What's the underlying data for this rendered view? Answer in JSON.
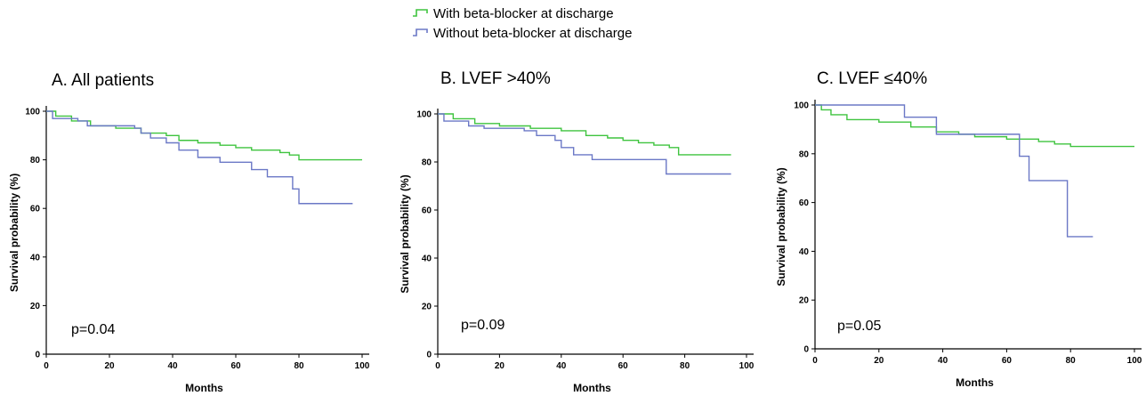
{
  "legend": {
    "items": [
      {
        "label": "With beta-blocker at discharge",
        "color": "#3fc43f"
      },
      {
        "label": "Without beta-blocker at discharge",
        "color": "#6b78c6"
      }
    ]
  },
  "chart_data": [
    {
      "type": "line",
      "title": "A. All patients",
      "xlabel": "Months",
      "ylabel": "Survival probability (%)",
      "xlim": [
        0,
        100
      ],
      "ylim": [
        0,
        100
      ],
      "xticks": [
        0,
        20,
        40,
        60,
        80,
        100
      ],
      "yticks": [
        0,
        20,
        40,
        60,
        80,
        100
      ],
      "grid": false,
      "annotation": "p=0.04",
      "series": [
        {
          "name": "With beta-blocker at discharge",
          "color": "#3fc43f",
          "x": [
            0,
            3,
            8,
            14,
            22,
            30,
            38,
            42,
            48,
            55,
            60,
            65,
            70,
            74,
            77,
            80,
            90,
            100
          ],
          "y": [
            100,
            98,
            96,
            94,
            93,
            91,
            90,
            88,
            87,
            86,
            85,
            84,
            84,
            83,
            82,
            80,
            80,
            80
          ]
        },
        {
          "name": "Without beta-blocker at discharge",
          "color": "#6b78c6",
          "x": [
            0,
            2,
            10,
            13,
            28,
            30,
            33,
            38,
            42,
            48,
            55,
            65,
            70,
            78,
            80,
            97
          ],
          "y": [
            100,
            97,
            96,
            94,
            93,
            91,
            89,
            87,
            84,
            81,
            79,
            76,
            73,
            68,
            62,
            62
          ]
        }
      ]
    },
    {
      "type": "line",
      "title": "B. LVEF >40%",
      "xlabel": "Months",
      "ylabel": "Survival probability (%)",
      "xlim": [
        0,
        100
      ],
      "ylim": [
        0,
        100
      ],
      "xticks": [
        0,
        20,
        40,
        60,
        80,
        100
      ],
      "yticks": [
        0,
        20,
        40,
        60,
        80,
        100
      ],
      "grid": false,
      "annotation": "p=0.09",
      "series": [
        {
          "name": "With beta-blocker at discharge",
          "color": "#3fc43f",
          "x": [
            0,
            5,
            12,
            20,
            30,
            40,
            48,
            55,
            60,
            65,
            70,
            75,
            78,
            95
          ],
          "y": [
            100,
            98,
            96,
            95,
            94,
            93,
            91,
            90,
            89,
            88,
            87,
            86,
            83,
            83
          ]
        },
        {
          "name": "Without beta-blocker at discharge",
          "color": "#6b78c6",
          "x": [
            0,
            2,
            10,
            15,
            28,
            32,
            38,
            40,
            44,
            50,
            60,
            74,
            95
          ],
          "y": [
            100,
            97,
            95,
            94,
            93,
            91,
            89,
            86,
            83,
            81,
            81,
            75,
            75
          ]
        }
      ]
    },
    {
      "type": "line",
      "title": "C. LVEF ≤40%",
      "xlabel": "Months",
      "ylabel": "Survival probability (%)",
      "xlim": [
        0,
        100
      ],
      "ylim": [
        0,
        100
      ],
      "xticks": [
        0,
        20,
        40,
        60,
        80,
        100
      ],
      "yticks": [
        0,
        20,
        40,
        60,
        80,
        100
      ],
      "grid": false,
      "annotation": "p=0.05",
      "series": [
        {
          "name": "With beta-blocker at discharge",
          "color": "#3fc43f",
          "x": [
            0,
            2,
            5,
            10,
            20,
            30,
            38,
            45,
            50,
            60,
            70,
            75,
            80,
            100
          ],
          "y": [
            100,
            98,
            96,
            94,
            93,
            91,
            89,
            88,
            87,
            86,
            85,
            84,
            83,
            83
          ]
        },
        {
          "name": "Without beta-blocker at discharge",
          "color": "#6b78c6",
          "x": [
            0,
            28,
            38,
            64,
            67,
            79,
            87
          ],
          "y": [
            100,
            95,
            88,
            79,
            69,
            46,
            46
          ]
        }
      ]
    }
  ]
}
